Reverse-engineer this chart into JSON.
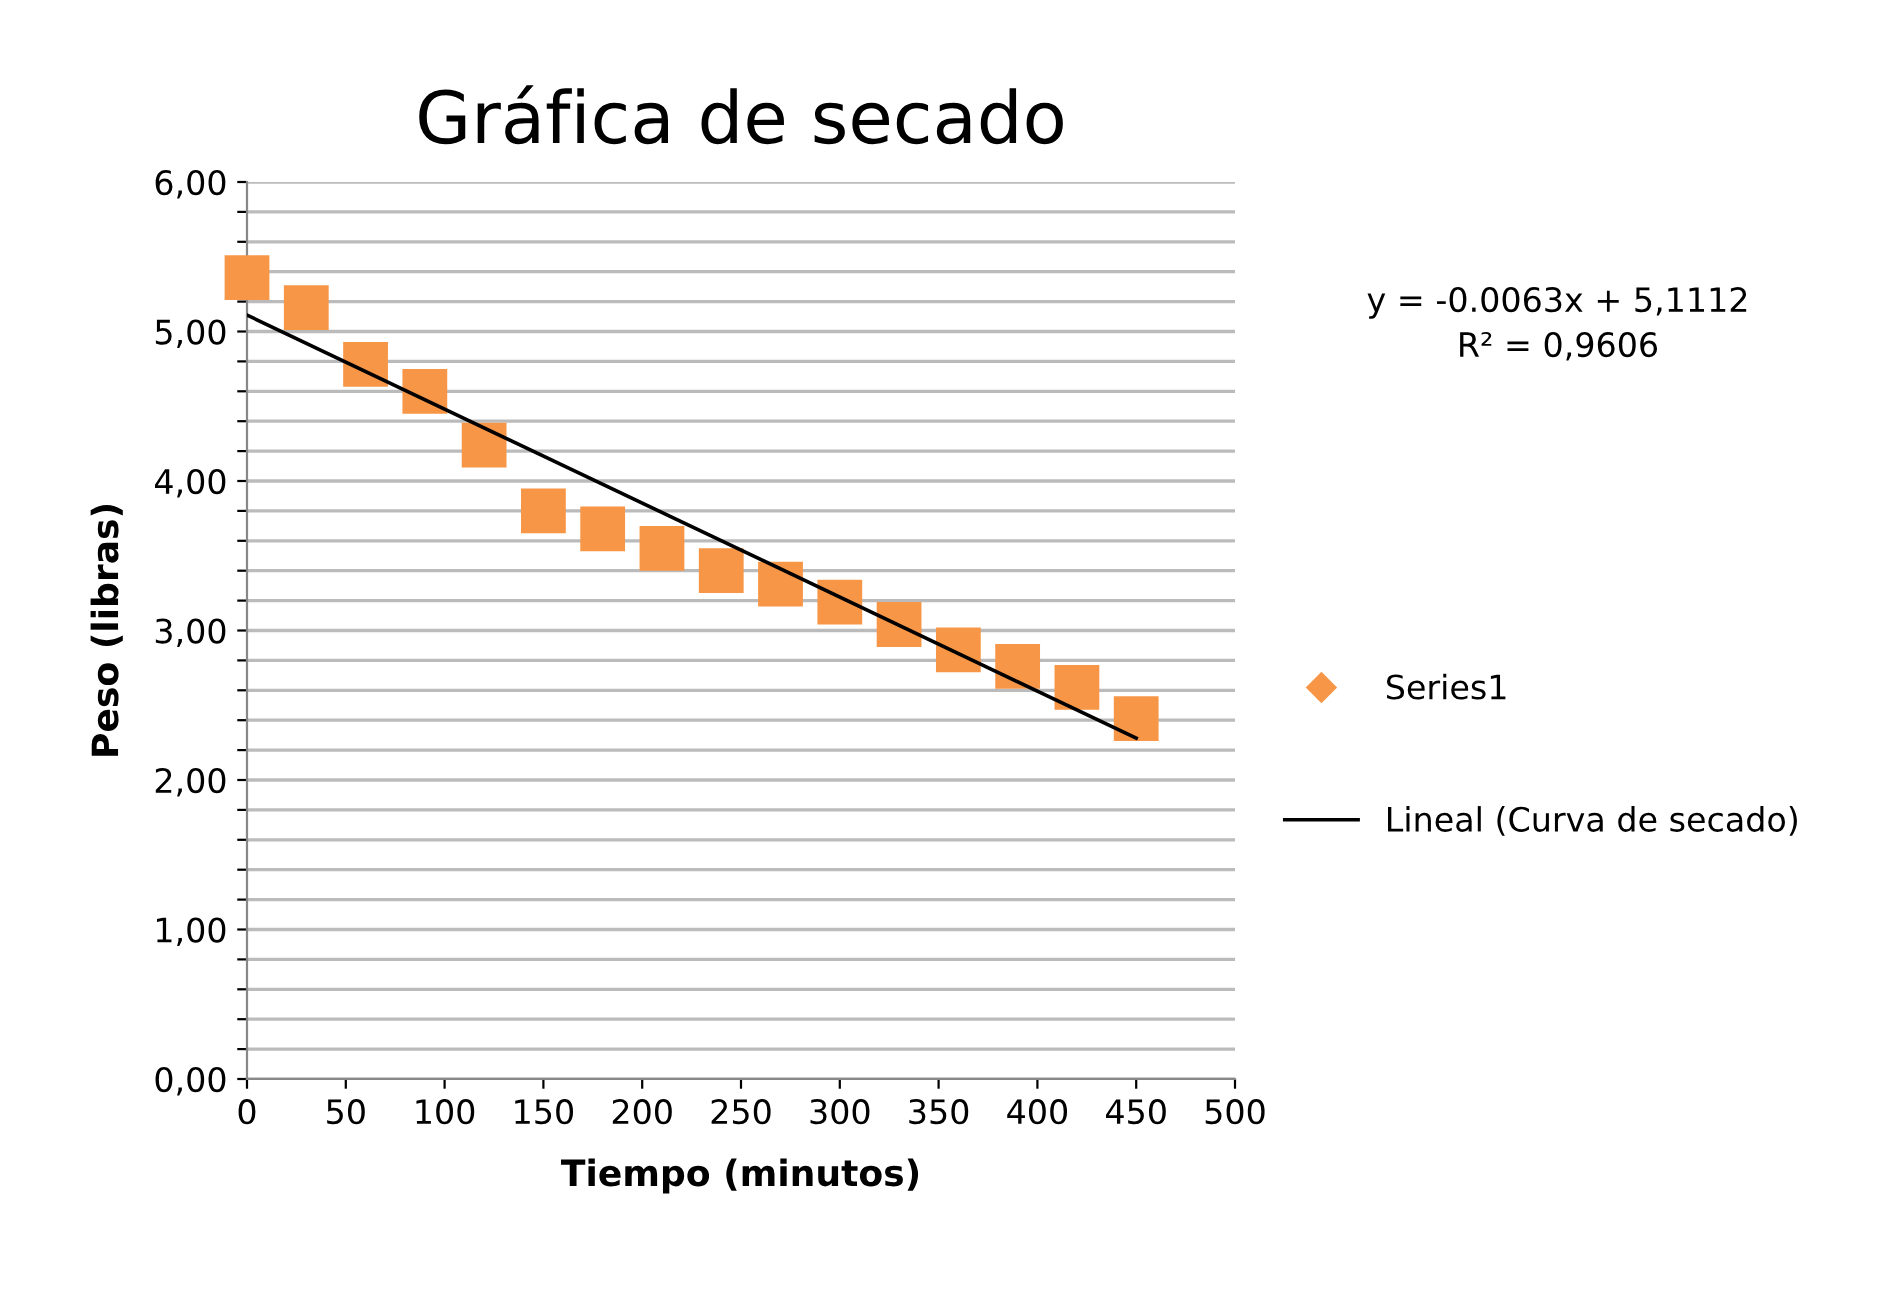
{
  "chart_data": {
    "type": "scatter",
    "title": "Gráfica de secado",
    "xlabel": "Tiempo (minutos)",
    "ylabel": "Peso (libras)",
    "x": [
      0,
      30,
      60,
      90,
      120,
      150,
      180,
      210,
      240,
      270,
      300,
      330,
      360,
      390,
      420,
      450
    ],
    "series": [
      {
        "name": "Series1",
        "color": "#f79646",
        "marker": "square",
        "values": [
          5.36,
          5.16,
          4.78,
          4.6,
          4.24,
          3.8,
          3.68,
          3.55,
          3.4,
          3.31,
          3.19,
          3.04,
          2.87,
          2.76,
          2.62,
          2.41
        ]
      },
      {
        "name": "Lineal (Curva de secado)",
        "type": "line",
        "color": "#000000",
        "marker": "none",
        "x": [
          0,
          450
        ],
        "values": [
          5.11,
          2.28
        ]
      }
    ],
    "annotations": [
      "y = -0.0063x + 5,1112\nR² = 0,9606"
    ],
    "xlim": [
      0,
      500
    ],
    "xticks": [
      0,
      50,
      100,
      150,
      200,
      250,
      300,
      350,
      400,
      450,
      500
    ],
    "ylim": [
      0,
      6
    ],
    "yticks": [
      {
        "value": 0,
        "label": "0,00"
      },
      {
        "value": 0.2,
        "label": null
      },
      {
        "value": 0.4,
        "label": null
      },
      {
        "value": 0.6,
        "label": null
      },
      {
        "value": 0.8,
        "label": null
      },
      {
        "value": 1,
        "label": "1,00"
      },
      {
        "value": 1.2,
        "label": null
      },
      {
        "value": 1.4,
        "label": null
      },
      {
        "value": 1.6,
        "label": null
      },
      {
        "value": 1.8,
        "label": null
      },
      {
        "value": 2,
        "label": "2,00"
      },
      {
        "value": 2.2,
        "label": null
      },
      {
        "value": 2.4,
        "label": null
      },
      {
        "value": 2.6,
        "label": null
      },
      {
        "value": 2.8,
        "label": null
      },
      {
        "value": 3,
        "label": "3,00"
      },
      {
        "value": 3.2,
        "label": null
      },
      {
        "value": 3.4,
        "label": null
      },
      {
        "value": 3.6,
        "label": null
      },
      {
        "value": 3.8,
        "label": null
      },
      {
        "value": 4,
        "label": "4,00"
      },
      {
        "value": 4.2,
        "label": null
      },
      {
        "value": 4.4,
        "label": null
      },
      {
        "value": 4.6,
        "label": null
      },
      {
        "value": 4.8,
        "label": null
      },
      {
        "value": 5,
        "label": "5,00"
      },
      {
        "value": 5.2,
        "label": null
      },
      {
        "value": 5.4,
        "label": null
      },
      {
        "value": 5.6,
        "label": null
      },
      {
        "value": 5.8,
        "label": null
      },
      {
        "value": 6,
        "label": "6,00"
      }
    ],
    "grid": "y",
    "legend": "right"
  }
}
